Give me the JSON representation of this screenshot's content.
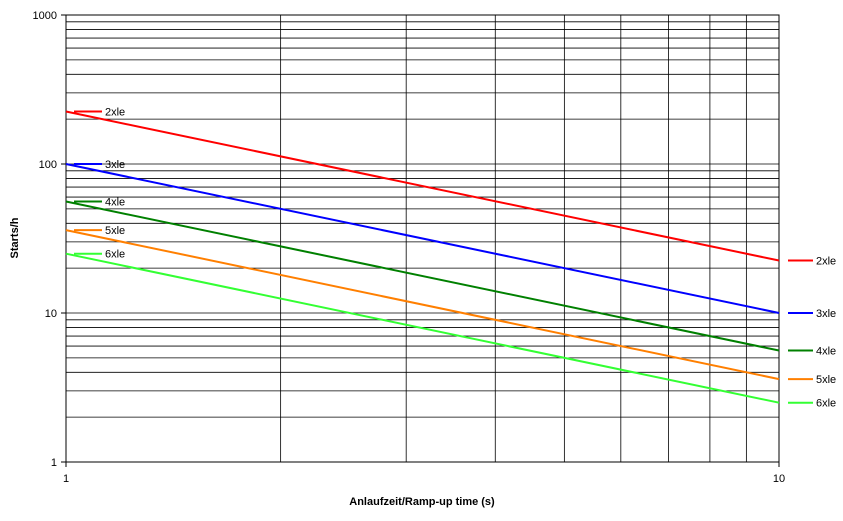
{
  "chart_data": {
    "type": "line",
    "title": "",
    "xlabel": "Anlaufzeit/Ramp-up time (s)",
    "ylabel": "Starts/h",
    "x_scale": "log",
    "y_scale": "log",
    "xlim": [
      1,
      10
    ],
    "ylim": [
      1,
      1000
    ],
    "grid": true,
    "x_ticks": [
      "1",
      "10"
    ],
    "y_ticks": [
      "1",
      "10",
      "100",
      "1000"
    ],
    "legend": "right",
    "series": [
      {
        "name": "2xle",
        "color": "#ff0000",
        "x": [
          1,
          10
        ],
        "y": [
          225,
          22.5
        ]
      },
      {
        "name": "3xle",
        "color": "#0000ff",
        "x": [
          1,
          10
        ],
        "y": [
          100,
          10
        ]
      },
      {
        "name": "4xle",
        "color": "#008000",
        "x": [
          1,
          10
        ],
        "y": [
          56,
          5.6
        ]
      },
      {
        "name": "5xle",
        "color": "#ff7f00",
        "x": [
          1,
          10
        ],
        "y": [
          36,
          3.6
        ]
      },
      {
        "name": "6xle",
        "color": "#33ff33",
        "x": [
          1,
          10
        ],
        "y": [
          25,
          2.5
        ]
      }
    ]
  }
}
